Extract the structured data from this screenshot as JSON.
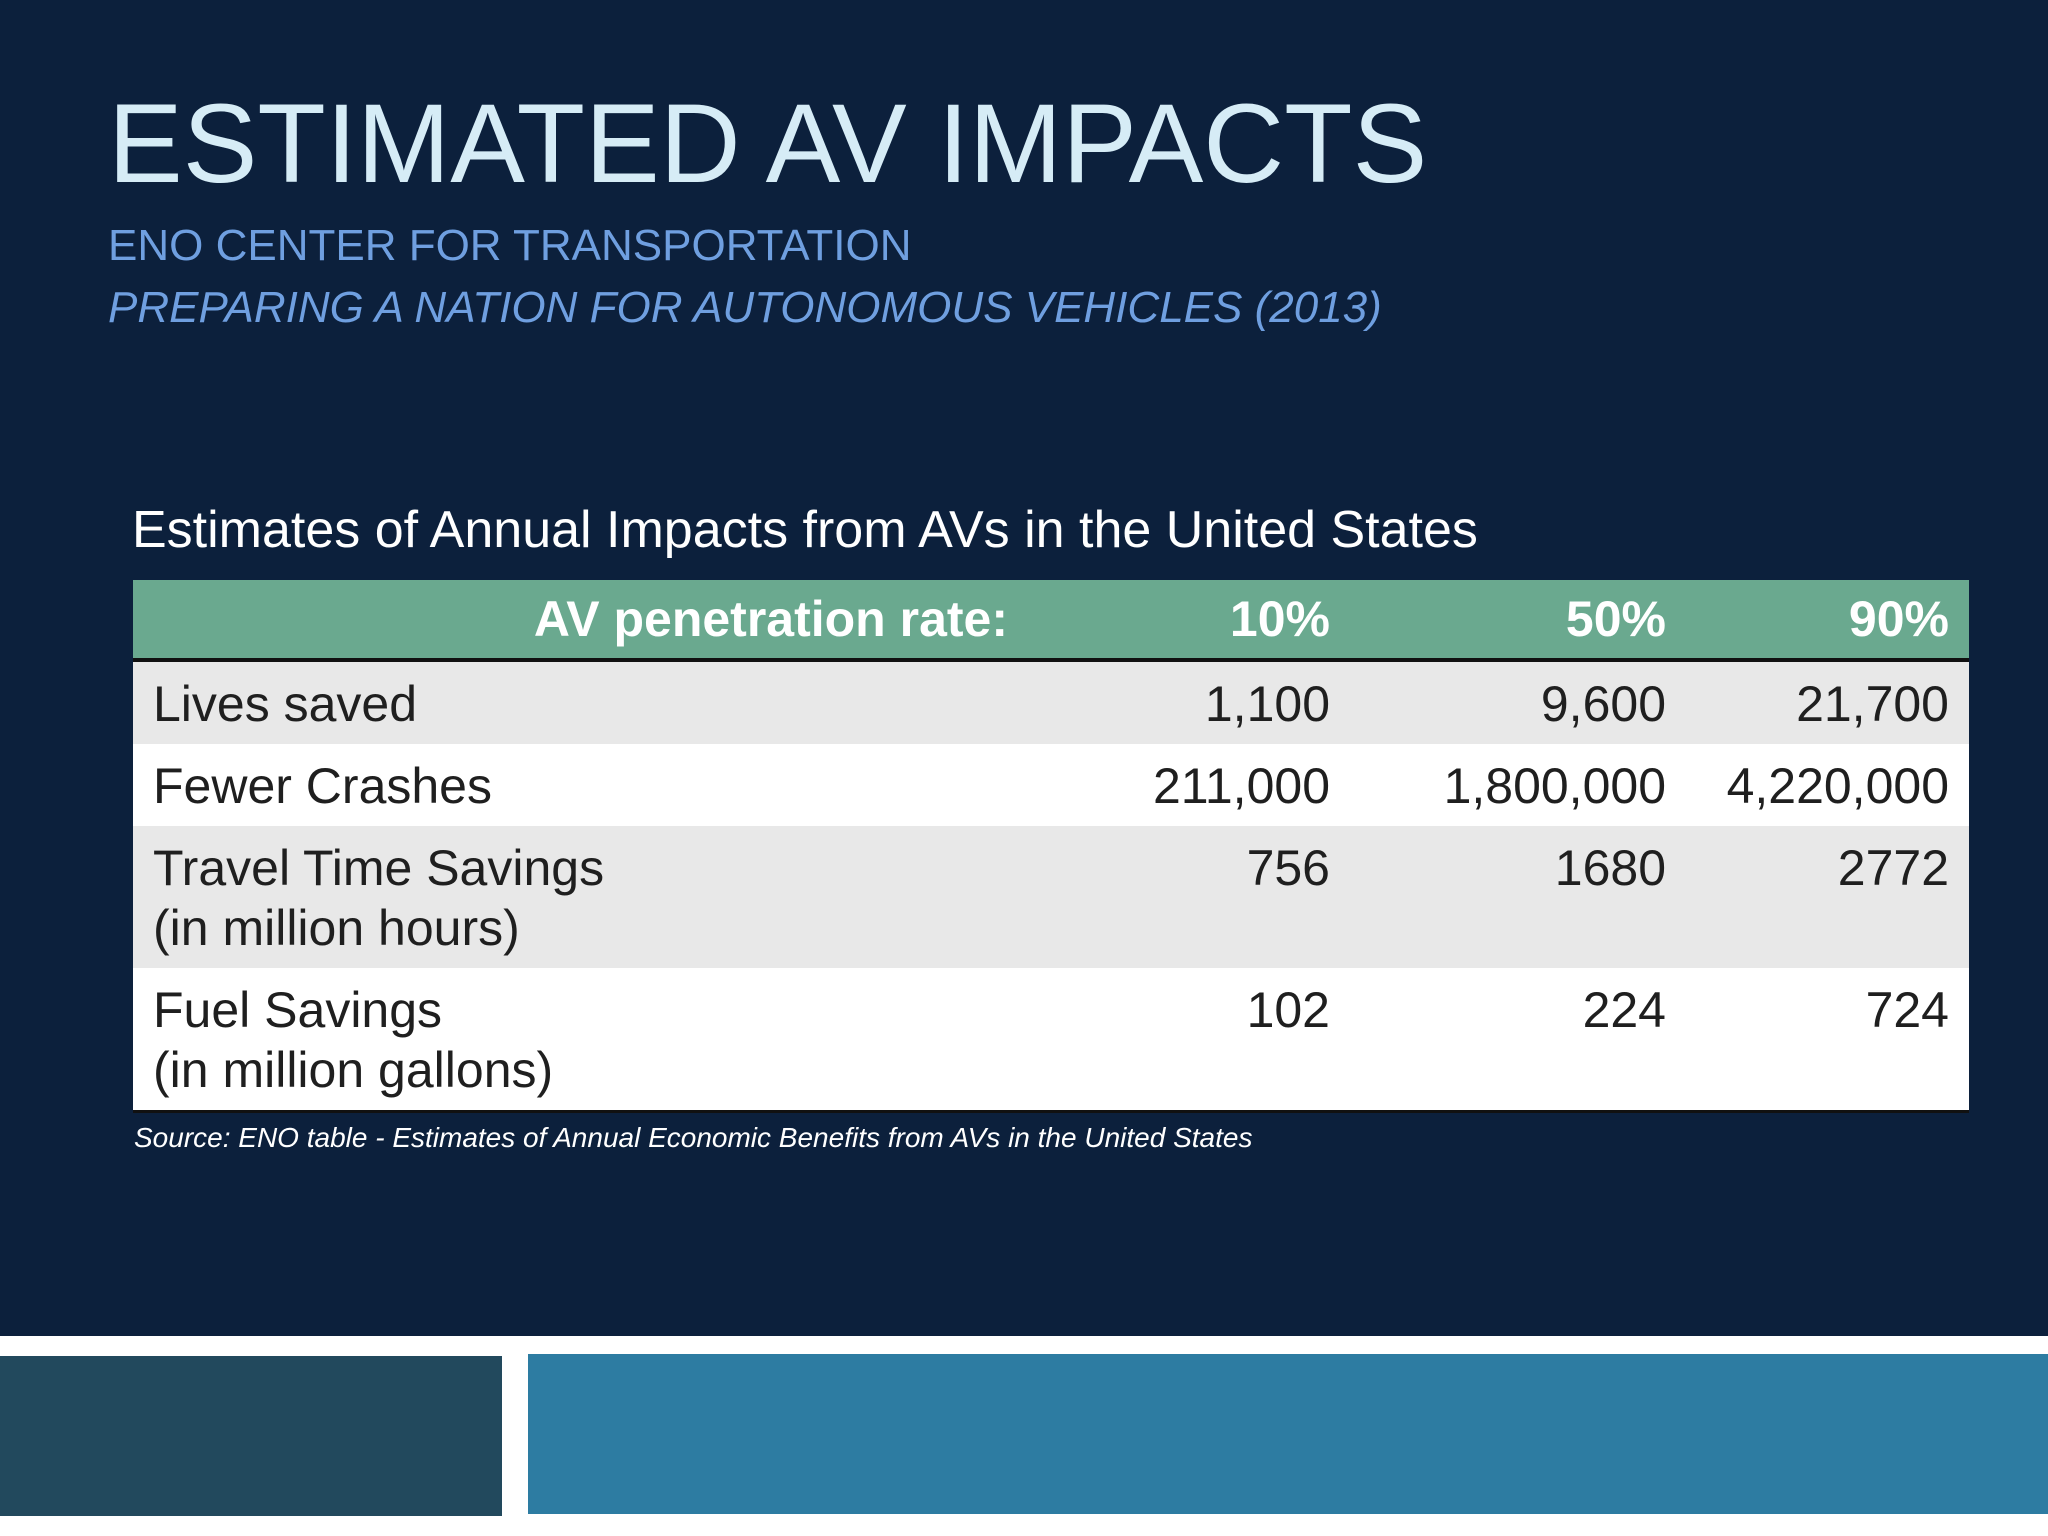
{
  "slide": {
    "title": "ESTIMATED AV IMPACTS",
    "subtitle_line1": "ENO CENTER FOR TRANSPORTATION",
    "subtitle_line2": "PREPARING A NATION FOR AUTONOMOUS VEHICLES (2013)",
    "table_caption": "Estimates of Annual Impacts from AVs in the United States",
    "source_note": "Source: ENO table -  Estimates of  Annual Economic Benefits from AVs in the United States"
  },
  "colors": {
    "background": "#0c203c",
    "title": "#d6ecf6",
    "subtitle": "#6f9fe0",
    "table_header": "#6aa98f",
    "row_shade": "#e8e8e8",
    "footer_left": "#22495d",
    "footer_right": "#2d7ca2"
  },
  "table": {
    "header": [
      "AV penetration rate:",
      "10%",
      "50%",
      "90%"
    ],
    "rows": [
      {
        "label_line1": "Lives saved",
        "label_line2": "",
        "values": [
          "1,100",
          "9,600",
          "21,700"
        ]
      },
      {
        "label_line1": "Fewer Crashes",
        "label_line2": "",
        "values": [
          "211,000",
          "1,800,000",
          "4,220,000"
        ]
      },
      {
        "label_line1": "Travel Time Savings",
        "label_line2": "(in million hours)",
        "values": [
          "756",
          "1680",
          "2772"
        ]
      },
      {
        "label_line1": "Fuel Savings",
        "label_line2": "(in million gallons)",
        "values": [
          "102",
          "224",
          "724"
        ]
      }
    ]
  }
}
